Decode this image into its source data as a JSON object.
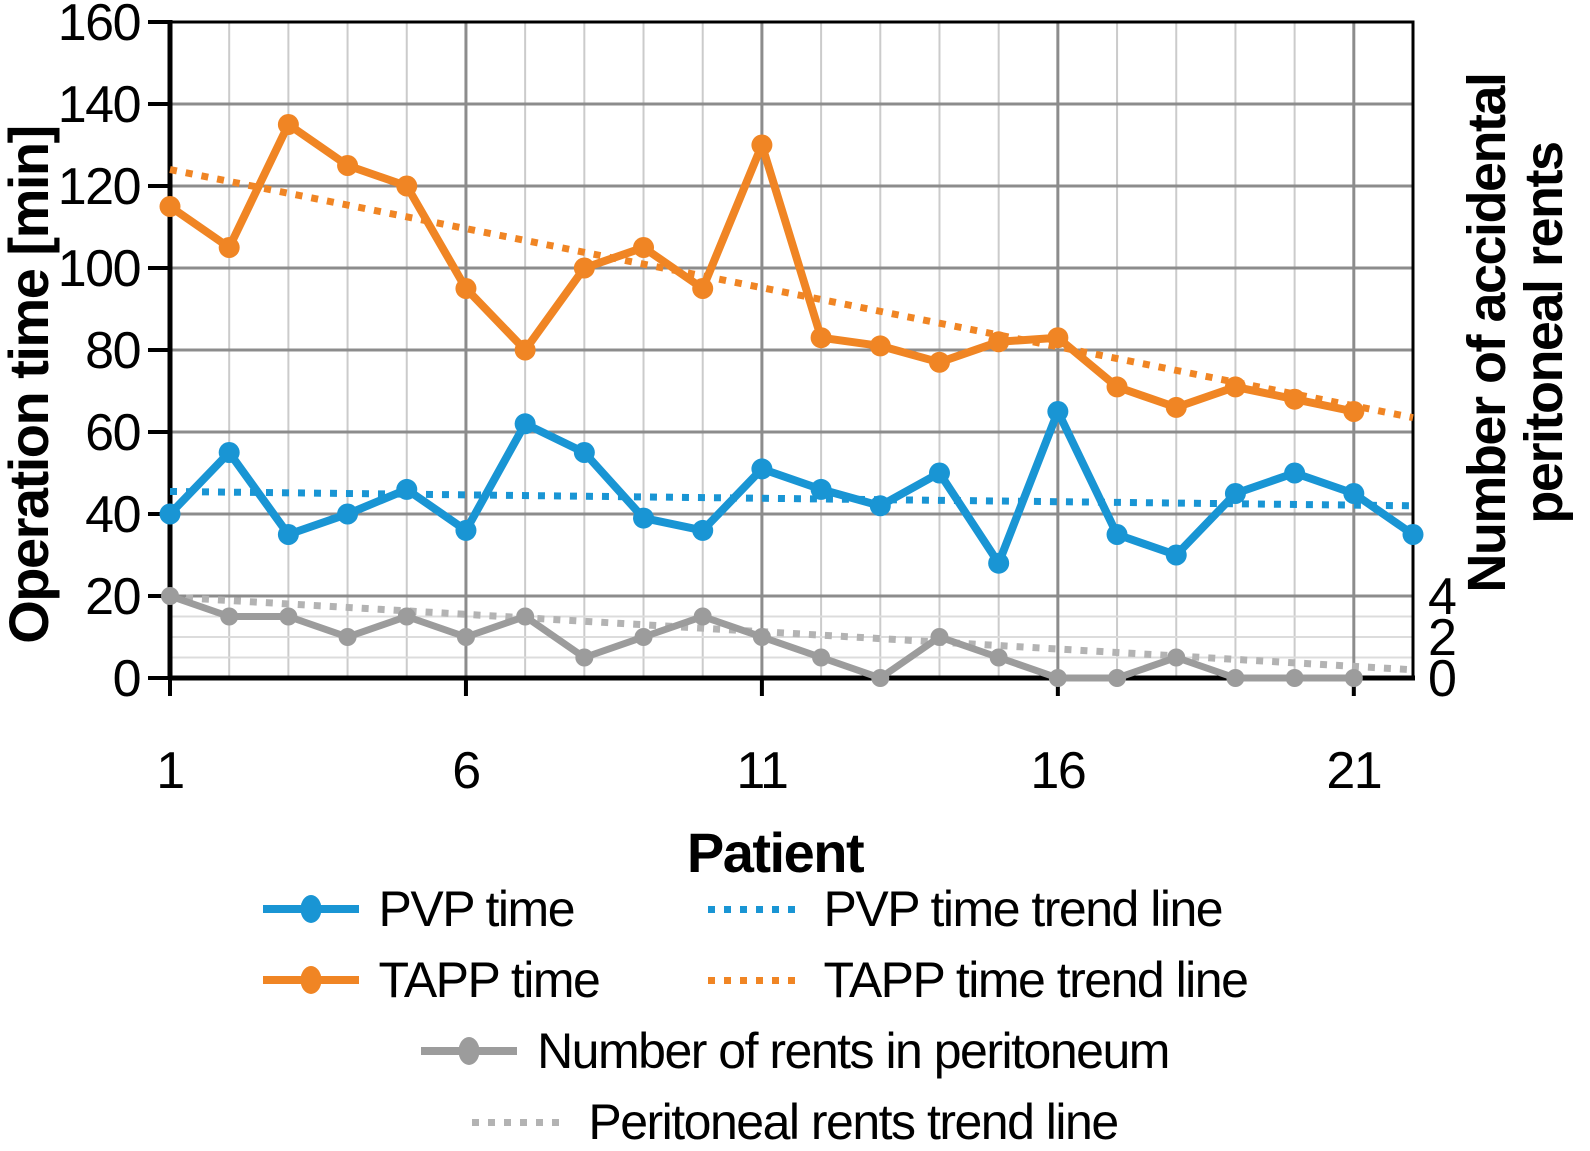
{
  "figure_title": "",
  "axes": {
    "left": {
      "title": "Operation time [min]",
      "ticks": [
        0,
        20,
        40,
        60,
        80,
        100,
        120,
        140,
        160
      ]
    },
    "right": {
      "title_line1": "Number of accidental",
      "title_line2": "peritoneal rents",
      "ticks": [
        0,
        2,
        4
      ]
    },
    "x": {
      "title": "Patient",
      "ticks": [
        1,
        6,
        11,
        16,
        21
      ]
    }
  },
  "chart_data": {
    "type": "line",
    "title": "",
    "xlabel": "Patient",
    "ylabel_left": "Operation time [min]",
    "ylabel_right": "Number of accidental peritoneal rents",
    "xlim": [
      1,
      22
    ],
    "ylim_left": [
      0,
      160
    ],
    "ylim_right": [
      0,
      4
    ],
    "right_axis_scale_note": "1 rent unit = 5 min on left axis; right labels 0,2,4 align with 0,10,20 min",
    "grid": "on",
    "x": [
      1,
      2,
      3,
      4,
      5,
      6,
      7,
      8,
      9,
      10,
      11,
      12,
      13,
      14,
      15,
      16,
      17,
      18,
      19,
      20,
      21,
      22
    ],
    "series": [
      {
        "name": "Peritoneal rents trend line",
        "axis": "right",
        "style": "dotted",
        "color": "#b3b3b3",
        "trend": {
          "start": 3.95,
          "end": 0.4
        }
      },
      {
        "name": "Number of rents in peritoneum",
        "axis": "right",
        "style": "solid-markers",
        "color": "#9c9c9c",
        "values": [
          4,
          3,
          3,
          2,
          3,
          2,
          3,
          1,
          2,
          3,
          2,
          1,
          0,
          2,
          1,
          0,
          0,
          1,
          0,
          0,
          0
        ]
      },
      {
        "name": "TAPP time trend line",
        "axis": "left",
        "style": "dotted",
        "color": "#f08524",
        "trend": {
          "start": 124,
          "end": 63.5
        }
      },
      {
        "name": "TAPP time",
        "axis": "left",
        "style": "solid-markers",
        "color": "#f08524",
        "values": [
          115,
          105,
          135,
          125,
          120,
          95,
          80,
          100,
          105,
          95,
          130,
          83,
          81,
          77,
          82,
          83,
          71,
          66,
          71,
          68,
          65
        ]
      },
      {
        "name": "PVP time trend line",
        "axis": "left",
        "style": "dotted",
        "color": "#1995d4",
        "trend": {
          "start": 45.5,
          "end": 42
        }
      },
      {
        "name": "PVP time",
        "axis": "left",
        "style": "solid-markers",
        "color": "#1995d4",
        "values": [
          40,
          55,
          35,
          40,
          46,
          36,
          62,
          55,
          39,
          36,
          51,
          46,
          42,
          50,
          28,
          65,
          35,
          30,
          45,
          50,
          45,
          35
        ]
      }
    ]
  },
  "legend": {
    "items": [
      {
        "label": "PVP time",
        "style": "solid",
        "color": "#1995d4"
      },
      {
        "label": "PVP time trend line",
        "style": "dotted",
        "color": "#1995d4"
      },
      {
        "label": "TAPP time",
        "style": "solid",
        "color": "#f08524"
      },
      {
        "label": "TAPP time trend line",
        "style": "dotted",
        "color": "#f08524"
      },
      {
        "label": "Number of rents in peritoneum",
        "style": "solid",
        "color": "#9c9c9c"
      },
      {
        "label": "Peritoneal rents trend line",
        "style": "dotted",
        "color": "#b3b3b3"
      }
    ]
  },
  "colors": {
    "pvp": "#1995d4",
    "tapp": "#f08524",
    "rents": "#9c9c9c",
    "rents_trend": "#b3b3b3",
    "grid_major": "#8c8c8c",
    "grid_minor_v": "#cbcbcb",
    "grid_minor_h": "#dcdcdc",
    "axis": "#000000",
    "background": "#ffffff"
  }
}
